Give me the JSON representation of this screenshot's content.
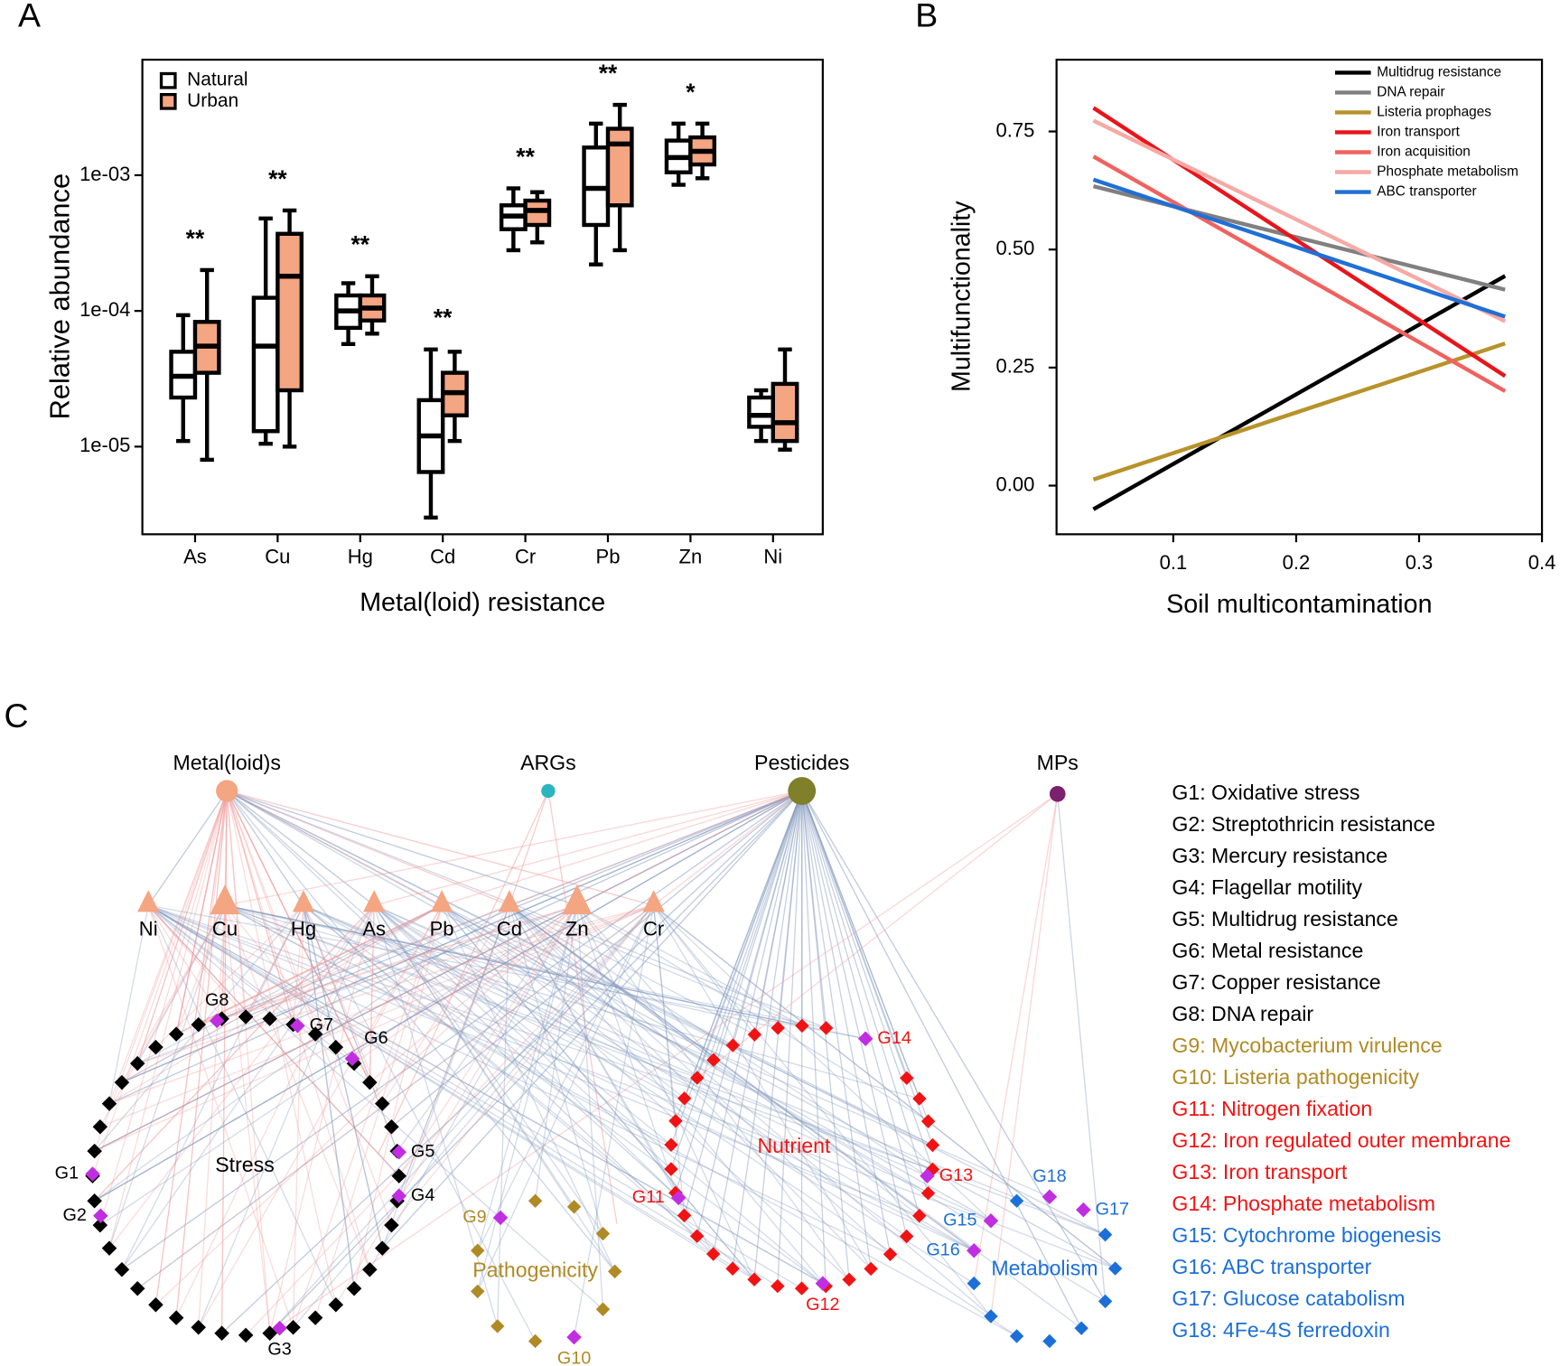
{
  "chart_data": [
    {
      "type": "box",
      "panel": "A",
      "xlabel": "Metal(loid) resistance",
      "ylabel": "Relative abundance",
      "categories": [
        "As",
        "Cu",
        "Hg",
        "Cd",
        "Cr",
        "Pb",
        "Zn",
        "Ni"
      ],
      "series": [
        {
          "name": "Natural",
          "color": "#ffffff",
          "values": [
            [
              1.1e-05,
              2.3e-05,
              3.3e-05,
              5e-05,
              9.3e-05
            ],
            [
              1.05e-05,
              1.3e-05,
              5.5e-05,
              0.000125,
              0.00048
            ],
            [
              5.7e-05,
              7.5e-05,
              0.0001,
              0.00013,
              0.00016
            ],
            [
              3e-06,
              6.5e-06,
              1.2e-05,
              2.2e-05,
              5.2e-05
            ],
            [
              0.00028,
              0.0004,
              0.0005,
              0.0006,
              0.0008
            ],
            [
              0.00022,
              0.00043,
              0.0008,
              0.0016,
              0.0024
            ],
            [
              0.00085,
              0.00105,
              0.00135,
              0.0018,
              0.0024
            ],
            [
              1.1e-05,
              1.4e-05,
              1.7e-05,
              2.3e-05,
              2.6e-05
            ]
          ]
        },
        {
          "name": "Urban",
          "color": "#f4a582",
          "values": [
            [
              8e-06,
              3.5e-05,
              5.5e-05,
              8.3e-05,
              0.0002
            ],
            [
              1e-05,
              2.6e-05,
              0.00018,
              0.00037,
              0.00055
            ],
            [
              6.8e-05,
              8.5e-05,
              0.000105,
              0.00013,
              0.00018
            ],
            [
              1.1e-05,
              1.7e-05,
              2.5e-05,
              3.5e-05,
              5e-05
            ],
            [
              0.00032,
              0.00043,
              0.00055,
              0.00065,
              0.00075
            ],
            [
              0.00028,
              0.0006,
              0.0017,
              0.0022,
              0.0033
            ],
            [
              0.00095,
              0.0012,
              0.0015,
              0.0019,
              0.0024
            ],
            [
              9.5e-06,
              1.1e-05,
              1.5e-05,
              2.9e-05,
              5.2e-05
            ]
          ]
        }
      ],
      "significance": [
        "**",
        "**",
        "**",
        "**",
        "**",
        "**",
        "*",
        null
      ],
      "log_scale": true,
      "ylim": [
        2.26e-06,
        0.0071
      ],
      "yticks": [
        {
          "value": 1e-05,
          "label": "1e-05"
        },
        {
          "value": 0.0001,
          "label": "1e-04"
        },
        {
          "value": 0.001,
          "label": "1e-03"
        }
      ],
      "legend": "upper left"
    },
    {
      "type": "line",
      "panel": "B",
      "xlabel": "Soil multicontamination",
      "ylabel": "Multifunctionality",
      "x": [
        0.035,
        0.37
      ],
      "series": [
        {
          "name": "Multidrug resistance",
          "color": "#000000",
          "values": [
            -0.05,
            0.444
          ]
        },
        {
          "name": "DNA repair",
          "color": "#808080",
          "values": [
            0.634,
            0.415
          ]
        },
        {
          "name": "Listeria prophages",
          "color": "#b8922a",
          "values": [
            0.013,
            0.301
          ]
        },
        {
          "name": "Iron transport",
          "color": "#e8151b",
          "values": [
            0.8,
            0.232
          ]
        },
        {
          "name": "Iron acquisition",
          "color": "#f0625f",
          "values": [
            0.697,
            0.2
          ]
        },
        {
          "name": "Phosphate metabolism",
          "color": "#f6a9a5",
          "values": [
            0.773,
            0.348
          ]
        },
        {
          "name": "ABC transporter",
          "color": "#1f6fd6",
          "values": [
            0.648,
            0.358
          ]
        }
      ],
      "xlim": [
        0.005,
        0.4
      ],
      "ylim": [
        -0.103,
        0.902
      ],
      "xticks": [
        0.1,
        0.2,
        0.3,
        0.4
      ],
      "yticks": [
        {
          "value": 0,
          "label": "0.00"
        },
        0.25,
        {
          "value": 0.5,
          "label": "0.50"
        },
        0.75
      ],
      "legend": "upper right"
    }
  ],
  "diagram": {
    "panel": "C",
    "hubs": [
      "Metal(loid)s",
      "ARGs",
      "Pesticides",
      "MPs"
    ],
    "metals": [
      "Ni",
      "Cu",
      "Hg",
      "As",
      "Pb",
      "Cd",
      "Zn",
      "Cr"
    ],
    "modules": [
      "Stress",
      "Pathogenicity",
      "Nutrient",
      "Metabolism"
    ],
    "gene_nodes": [
      "G1",
      "G2",
      "G3",
      "G4",
      "G5",
      "G6",
      "G7",
      "G8",
      "G9",
      "G10",
      "G11",
      "G12",
      "G13",
      "G14",
      "G15",
      "G16",
      "G17",
      "G18"
    ],
    "legend": [
      "G1: Oxidative stress",
      "G2: Streptothricin resistance",
      "G3: Mercury resistance",
      "G4: Flagellar motility",
      "G5: Multidrug resistance",
      "G6: Metal resistance",
      "G7: Copper resistance",
      "G8: DNA repair",
      "G9: Mycobacterium virulence",
      "G10: Listeria pathogenicity",
      "G11: Nitrogen fixation",
      "G12: Iron regulated outer membrane",
      "G13: Iron transport",
      "G14: Phosphate metabolism",
      "G15: Cytochrome biogenesis",
      "G16: ABC transporter",
      "G17: Glucose catabolism",
      "G18: 4Fe-4S ferredoxin"
    ]
  }
}
